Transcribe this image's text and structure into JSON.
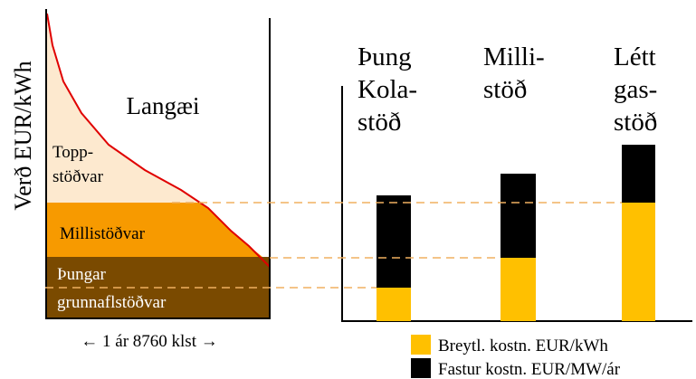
{
  "left_panel": {
    "y_axis_label": "Verð EUR/kWh",
    "title": "Langæi",
    "bands": [
      {
        "label_lines": [
          "Topp-",
          "stöðvar"
        ]
      },
      {
        "label_lines": [
          "Millistöðvar"
        ]
      },
      {
        "label_lines": [
          "Þungar",
          "grunnaflstöðvar"
        ]
      }
    ],
    "x_axis_label": "← 1 ár 8760 klst →"
  },
  "right_panel": {
    "bars": [
      {
        "label_lines": [
          "Þung",
          "Kola-",
          "stöð"
        ]
      },
      {
        "label_lines": [
          "Milli-",
          "stöð"
        ]
      },
      {
        "label_lines": [
          "Létt",
          "gas-",
          "stöð"
        ]
      }
    ],
    "legend": [
      "Breytl. kostn. EUR/kWh",
      "Fastur kostn. EUR/MW/ár"
    ]
  }
}
